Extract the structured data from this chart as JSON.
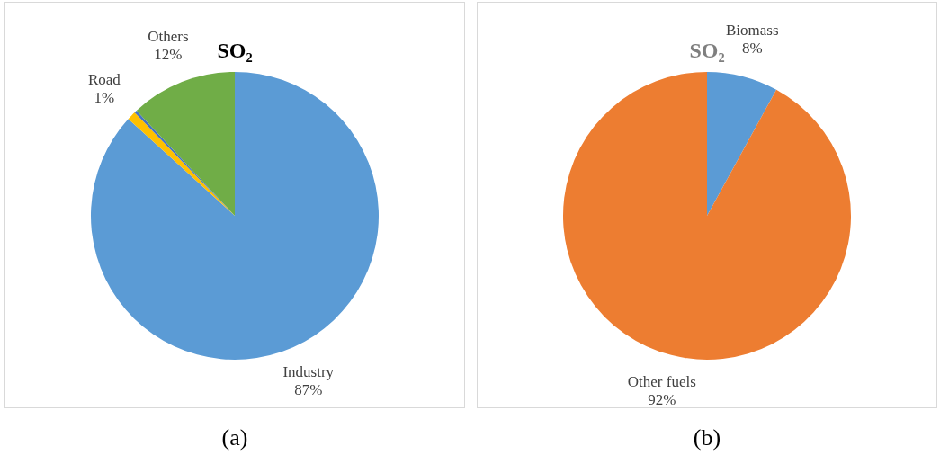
{
  "chart_data": [
    {
      "type": "pie",
      "title": "SO₂",
      "categories": [
        "Industry",
        "Road",
        null,
        "Others"
      ],
      "values": [
        87,
        1,
        0.3,
        12
      ],
      "colors": [
        "#5b9bd5",
        "#ffc000",
        "#4472c4",
        "#70ad47"
      ],
      "value_labels": [
        "87%",
        "1%",
        null,
        "12%"
      ],
      "annotations": [
        "(a)"
      ]
    },
    {
      "type": "pie",
      "title": "SO₂",
      "categories": [
        "Biomass",
        "Other fuels"
      ],
      "values": [
        8,
        92
      ],
      "colors": [
        "#5b9bd5",
        "#ed7d31"
      ],
      "value_labels": [
        "8%",
        "92%"
      ],
      "annotations": [
        "(b)"
      ]
    }
  ]
}
